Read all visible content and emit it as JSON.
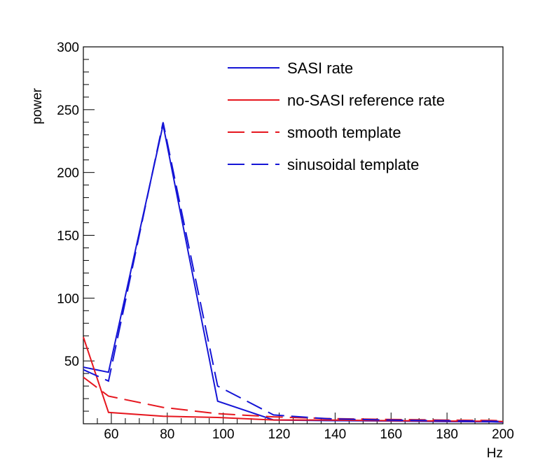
{
  "chart_data": {
    "type": "line",
    "title": "",
    "xlabel": "Hz",
    "ylabel": "power",
    "xlim": [
      50,
      200
    ],
    "ylim": [
      0,
      300
    ],
    "xticks": [
      60,
      80,
      100,
      120,
      140,
      160,
      180,
      200
    ],
    "yticks": [
      50,
      100,
      150,
      200,
      250,
      300
    ],
    "legend_position": "top-right",
    "grid": false,
    "series": [
      {
        "name": "SASI rate",
        "color": "#1515d6",
        "dash": "solid",
        "x": [
          50,
          59,
          78.5,
          98,
          118,
          137,
          157,
          176,
          196,
          200
        ],
        "y": [
          45,
          41,
          238,
          18,
          3,
          2.5,
          2.2,
          1.8,
          1.5,
          1.2
        ]
      },
      {
        "name": "no-SASI reference rate",
        "color": "#e6161e",
        "dash": "solid",
        "x": [
          50,
          59,
          78.5,
          98,
          118,
          137,
          157,
          176,
          196,
          200
        ],
        "y": [
          69,
          9,
          6,
          5,
          3,
          3,
          2.5,
          2.2,
          2,
          1.8
        ]
      },
      {
        "name": "smooth template",
        "color": "#e6161e",
        "dash": "dashed",
        "x": [
          50,
          59,
          78.5,
          98,
          118,
          137,
          157,
          176,
          196,
          200
        ],
        "y": [
          37,
          22,
          13,
          8,
          5.5,
          4.2,
          3.5,
          3,
          2.6,
          2.4
        ]
      },
      {
        "name": "sinusoidal template",
        "color": "#1515d6",
        "dash": "dashed",
        "x": [
          50,
          59,
          78.5,
          98,
          118,
          137,
          157,
          176,
          196,
          200
        ],
        "y": [
          43,
          34,
          240,
          30,
          7,
          4,
          3,
          2.5,
          2,
          1.8
        ]
      }
    ]
  }
}
